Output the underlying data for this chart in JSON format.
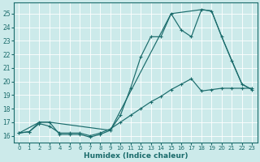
{
  "xlabel": "Humidex (Indice chaleur)",
  "bg_color": "#cceaea",
  "line_color": "#1a6b6b",
  "xlim": [
    -0.5,
    23.5
  ],
  "ylim": [
    15.5,
    25.8
  ],
  "xticks": [
    0,
    1,
    2,
    3,
    4,
    5,
    6,
    7,
    8,
    9,
    10,
    11,
    12,
    13,
    14,
    15,
    16,
    17,
    18,
    19,
    20,
    21,
    22,
    23
  ],
  "yticks": [
    16,
    17,
    18,
    19,
    20,
    21,
    22,
    23,
    24,
    25
  ],
  "line_main_x": [
    0,
    1,
    2,
    3,
    4,
    5,
    6,
    7,
    8,
    9,
    10,
    11,
    12,
    13,
    14,
    15,
    16,
    17,
    18,
    19,
    20,
    21,
    22,
    23
  ],
  "line_main_y": [
    16.2,
    16.3,
    17.0,
    17.0,
    16.1,
    16.1,
    16.1,
    15.9,
    16.1,
    16.4,
    17.5,
    19.5,
    21.8,
    23.3,
    23.3,
    25.0,
    23.8,
    23.3,
    25.3,
    25.2,
    23.3,
    21.5,
    19.8,
    19.4
  ],
  "line_mid_x": [
    0,
    1,
    2,
    3,
    4,
    5,
    6,
    7,
    8,
    9,
    10,
    11,
    12,
    13,
    14,
    15,
    16,
    17,
    18,
    19,
    20,
    21,
    22,
    23
  ],
  "line_mid_y": [
    16.2,
    16.3,
    16.9,
    16.7,
    16.2,
    16.2,
    16.2,
    16.0,
    16.2,
    16.5,
    17.0,
    17.5,
    18.0,
    18.5,
    18.9,
    19.4,
    19.8,
    20.2,
    19.3,
    19.4,
    19.5,
    19.5,
    19.5,
    19.5
  ],
  "line_env_x": [
    0,
    2,
    3,
    9,
    15,
    18,
    19,
    20,
    22,
    23
  ],
  "line_env_y": [
    16.2,
    17.0,
    17.0,
    16.4,
    25.0,
    25.3,
    25.2,
    23.3,
    19.8,
    19.4
  ]
}
